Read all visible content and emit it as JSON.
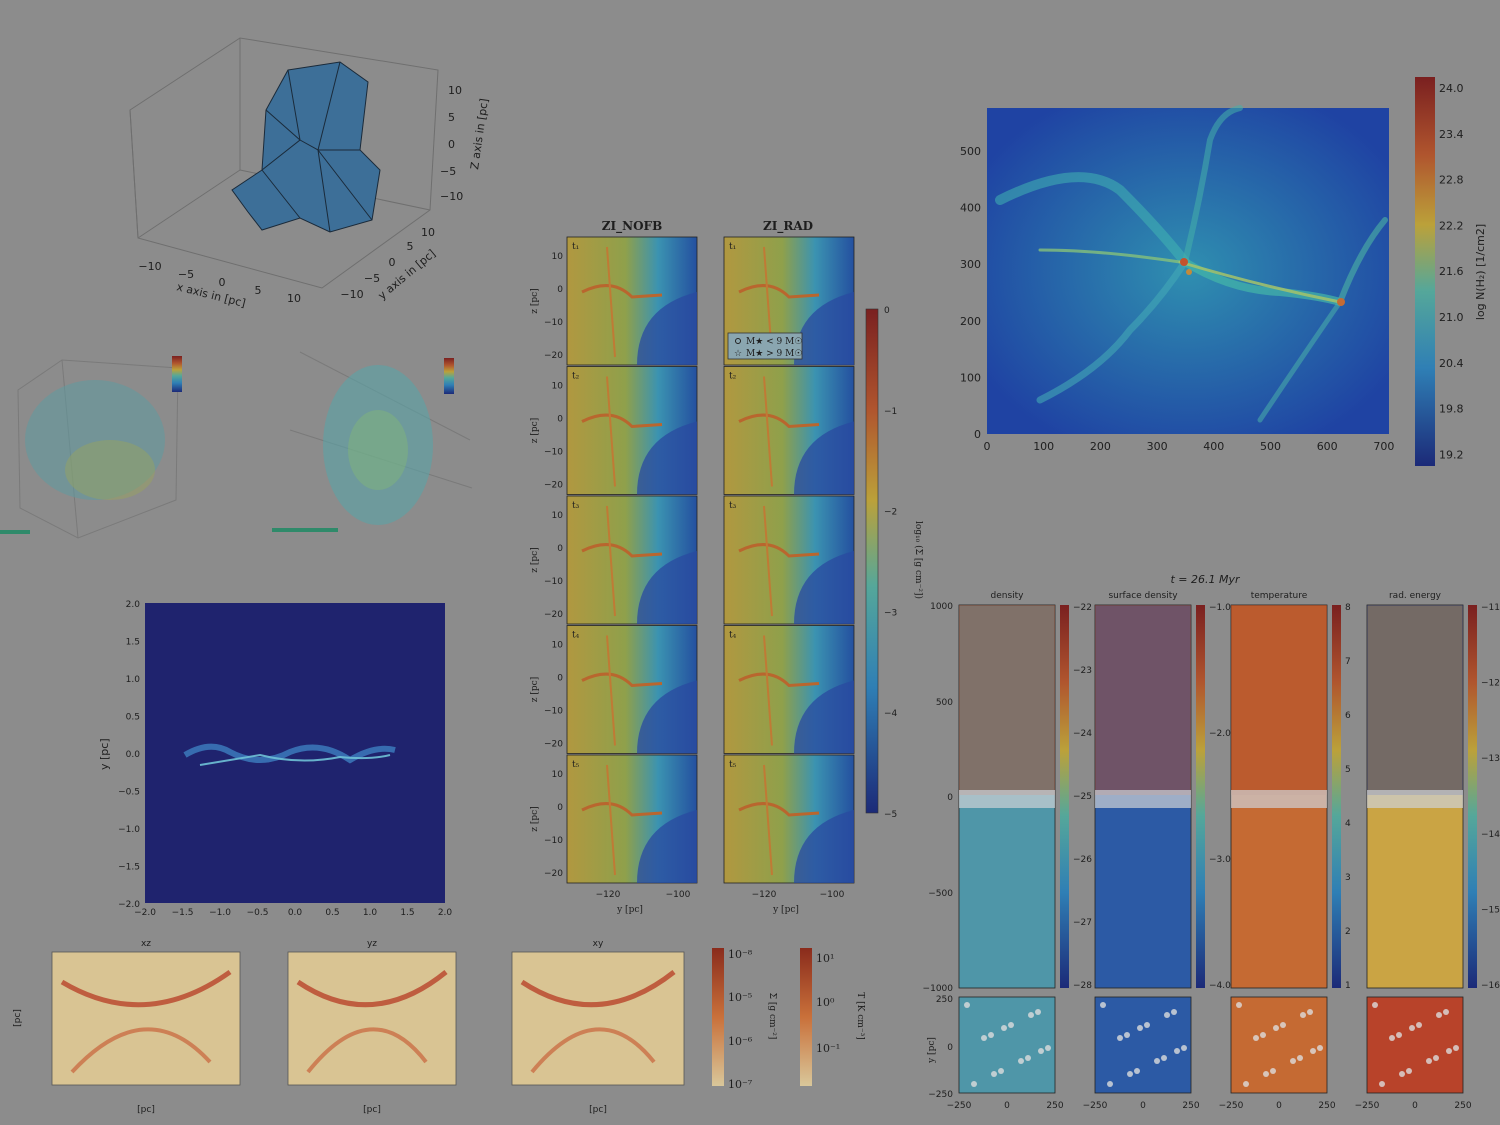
{
  "colors": {
    "background": "#8c8c8c",
    "jet_dark": "#1a2a7a",
    "jet_mid": "#2e9bb5",
    "jet_yellow": "#c7a93a",
    "jet_red": "#7a2020",
    "mesh_blue": "#3d6f98"
  },
  "panel_3d": {
    "zlabel": "Z axis in [pc]",
    "xlabel": "x axis in [pc]",
    "ylabel": "y axis in [pc]",
    "x_ticks": [
      "−10",
      "−5",
      "0",
      "5",
      "10"
    ],
    "y_ticks": [
      "−10",
      "−5",
      "0",
      "5",
      "10"
    ],
    "z_ticks": [
      "10",
      "5",
      "0",
      "−5",
      "−10"
    ]
  },
  "panel_nofb_rad": {
    "col_titles": [
      "ZI_NOFB",
      "ZI_RAD"
    ],
    "row_labels": [
      "t₁",
      "t₂",
      "t₃",
      "t₄",
      "t₅"
    ],
    "ylabel": "z [pc]",
    "xlabel": "y [pc]",
    "y_ticks": [
      "10",
      "0",
      "−10",
      "−20"
    ],
    "x_ticks": [
      "−120",
      "−100"
    ],
    "legend": [
      "M★ < 9 M☉",
      "M★ > 9 M☉"
    ],
    "colorbar_label": "log₁₀ (Σ [g cm⁻²])",
    "colorbar_ticks": [
      "0",
      "−1",
      "−2",
      "−3",
      "−4",
      "−5"
    ]
  },
  "panel_nh": {
    "colorbar_label": "log N(H₂) [1/cm2]",
    "x_ticks": [
      "0",
      "100",
      "200",
      "300",
      "400",
      "500",
      "600",
      "700"
    ],
    "y_ticks": [
      "500",
      "400",
      "300",
      "200",
      "100",
      "0"
    ],
    "colorbar_ticks": [
      "24.0",
      "23.4",
      "22.8",
      "22.2",
      "21.6",
      "21.0",
      "20.4",
      "19.8",
      "19.2"
    ]
  },
  "panel_blue": {
    "ylabel": "y [pc]",
    "x_ticks": [
      "−2.0",
      "−1.5",
      "−1.0",
      "−0.5",
      "0.0",
      "0.5",
      "1.0",
      "1.5",
      "2.0"
    ],
    "y_ticks": [
      "2.0",
      "1.5",
      "1.0",
      "0.5",
      "0.0",
      "−0.5",
      "−1.0",
      "−1.5",
      "−2.0"
    ]
  },
  "panel_strips": {
    "title": "t = 26.1 Myr",
    "strip_titles": [
      "density",
      "surface density",
      "temperature",
      "rad. energy"
    ],
    "y_ticks_big": [
      "1000",
      "500",
      "0",
      "−500",
      "−1000"
    ],
    "y_ticks_small": [
      "250",
      "0",
      "−250"
    ],
    "x_ticks": [
      "−250",
      "0",
      "250"
    ],
    "ylabel_small": "y [pc]",
    "cb_ticks": [
      [
        "−22",
        "−23",
        "−24",
        "−25",
        "−26",
        "−27",
        "−28"
      ],
      [
        "−1.0",
        "−2.0",
        "−3.0",
        "−4.0"
      ],
      [
        "8",
        "7",
        "6",
        "5",
        "4",
        "3",
        "2",
        "1"
      ],
      [
        "−11",
        "−12",
        "−13",
        "−14",
        "−15",
        "−16"
      ]
    ]
  },
  "panel_proj": {
    "titles": [
      "xz",
      "yz",
      "xy"
    ],
    "ylabel": "[pc]",
    "xlabel": "[pc]",
    "cb1_ticks": [
      "10⁻⁸",
      "10⁻⁵",
      "10⁻⁶",
      "10⁻⁷"
    ],
    "cb2_ticks": [
      "10¹",
      "10⁰",
      "10⁻¹"
    ],
    "cb1_label": "Σ [g cm⁻²]",
    "cb2_label": "T [K cm⁻³]"
  }
}
